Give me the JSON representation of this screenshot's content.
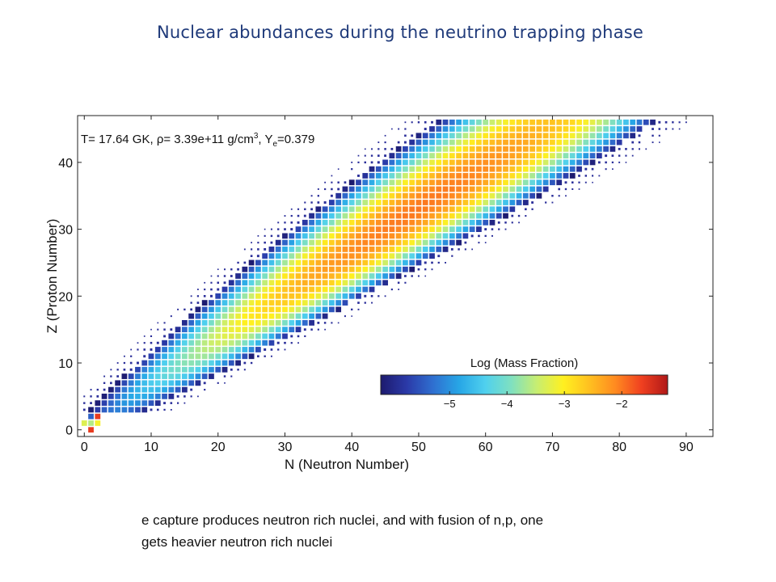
{
  "slide": {
    "title": "Nuclear abundances during the neutrino trapping phase",
    "caption_lines": [
      "e capture produces neutron rich nuclei, and with fusion of n,p, one",
      "gets heavier neutron rich nuclei"
    ]
  },
  "chart_data": {
    "type": "heatmap",
    "title": "",
    "xlabel": "N (Neutron Number)",
    "ylabel": "Z (Proton Number)",
    "xlim": [
      -1,
      94
    ],
    "ylim": [
      -1,
      47
    ],
    "xticks": [
      0,
      10,
      20,
      30,
      40,
      50,
      60,
      70,
      80,
      90
    ],
    "yticks": [
      0,
      10,
      20,
      30,
      40
    ],
    "grid": false,
    "annotation": {
      "prefix": "T= 17.64 GK, ",
      "rho_symbol": "ρ",
      "rho_value": "= 3.39e+11 g/cm",
      "rho_exp": "3",
      "ye_prefix": ", Y",
      "ye_sub": "e",
      "ye_value": "=0.379"
    },
    "colorbar": {
      "label": "Log (Mass Fraction)",
      "ticks": [
        -5,
        -4,
        -3,
        -2
      ],
      "tick_labels": [
        "−5",
        "−4",
        "−3",
        "−2"
      ],
      "range": [
        -6.2,
        -1.2
      ],
      "placement": "lower-right",
      "colormap": [
        "#1d1a6e",
        "#2b3aa8",
        "#2f6fd0",
        "#27a6e6",
        "#4fd0ee",
        "#7fe0c0",
        "#c8ee70",
        "#fff020",
        "#ffc020",
        "#ff8a20",
        "#f04020",
        "#b01818"
      ]
    },
    "distribution": {
      "description_none": "",
      "zmax": 46,
      "peak_neutron_excess_per_z": 1.62,
      "peak_offset": 0.8,
      "width_base": 4.2,
      "width_slope": 0.11,
      "peak_log_fraction_max": -2.0,
      "peak_z": 33,
      "min_shown_log_fraction": -9.0
    },
    "light_nuclei": [
      {
        "n": 0,
        "z": 1,
        "log_x": -3.3
      },
      {
        "n": 1,
        "z": 1,
        "log_x": -3.6
      },
      {
        "n": 2,
        "z": 1,
        "log_x": -3.1
      },
      {
        "n": 1,
        "z": 2,
        "log_x": -5.4
      },
      {
        "n": 2,
        "z": 2,
        "log_x": -1.6
      },
      {
        "n": 1,
        "z": 0,
        "log_x": -1.6
      }
    ]
  }
}
